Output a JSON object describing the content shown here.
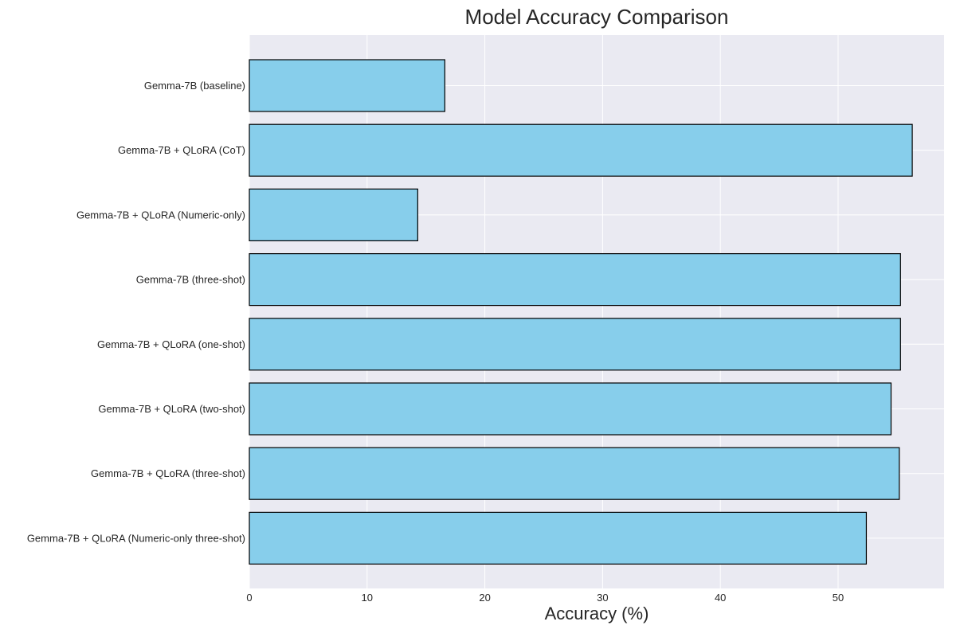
{
  "chart_data": {
    "type": "bar",
    "orientation": "horizontal",
    "title": "Model Accuracy Comparison",
    "xlabel": "Accuracy (%)",
    "ylabel": "",
    "xlim": [
      0,
      59
    ],
    "xticks": [
      0,
      10,
      20,
      30,
      40,
      50
    ],
    "grid": true,
    "categories": [
      "Gemma-7B (baseline)",
      "Gemma-7B + QLoRA (CoT)",
      "Gemma-7B + QLoRA (Numeric-only)",
      "Gemma-7B (three-shot)",
      "Gemma-7B + QLoRA (one-shot)",
      "Gemma-7B + QLoRA (two-shot)",
      "Gemma-7B + QLoRA (three-shot)",
      "Gemma-7B + QLoRA (Numeric-only three-shot)"
    ],
    "values": [
      16.6,
      56.3,
      14.3,
      55.3,
      55.3,
      54.5,
      55.2,
      52.4
    ],
    "colors": {
      "bar_fill": "#87CEEB",
      "bar_edge": "#000000",
      "plot_background": "#EAEAF2",
      "grid": "#FFFFFF"
    }
  }
}
